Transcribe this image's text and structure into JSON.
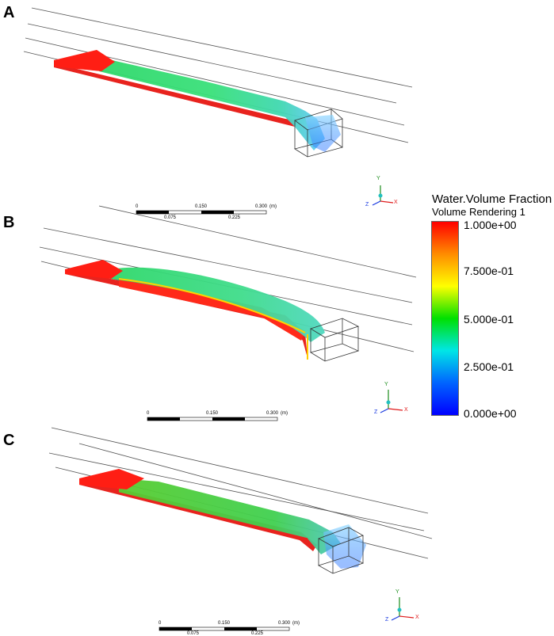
{
  "panels": [
    {
      "id": "A",
      "label": "A",
      "scale_bar": {
        "top_labels": [
          "0",
          "0.150",
          "0.300"
        ],
        "unit": "(m)",
        "bottom_labels": [
          "0.075",
          "0.225"
        ]
      },
      "axes": {
        "y": "Y",
        "x": "X",
        "z": "Z"
      }
    },
    {
      "id": "B",
      "label": "B",
      "scale_bar": {
        "top_labels": [
          "0",
          "0.150",
          "0.300"
        ],
        "unit": "(m)",
        "bottom_labels": []
      },
      "axes": {
        "y": "Y",
        "x": "X",
        "z": "Z"
      }
    },
    {
      "id": "C",
      "label": "C",
      "scale_bar": {
        "top_labels": [
          "0",
          "0.150",
          "0.300"
        ],
        "unit": "(m)",
        "bottom_labels": [
          "0.075",
          "0.225"
        ]
      },
      "axes": {
        "y": "Y",
        "x": "X",
        "z": "Z"
      }
    }
  ],
  "legend": {
    "title": "Water.Volume Fraction",
    "subtitle": "Volume Rendering 1",
    "ticks": [
      "1.000e+00",
      "7.500e-01",
      "5.000e-01",
      "2.500e-01",
      "0.000e+00"
    ],
    "colormap": [
      "#ff0000",
      "#ff8c00",
      "#ffff00",
      "#00e000",
      "#00e6e6",
      "#0064ff",
      "#0000ff"
    ]
  }
}
